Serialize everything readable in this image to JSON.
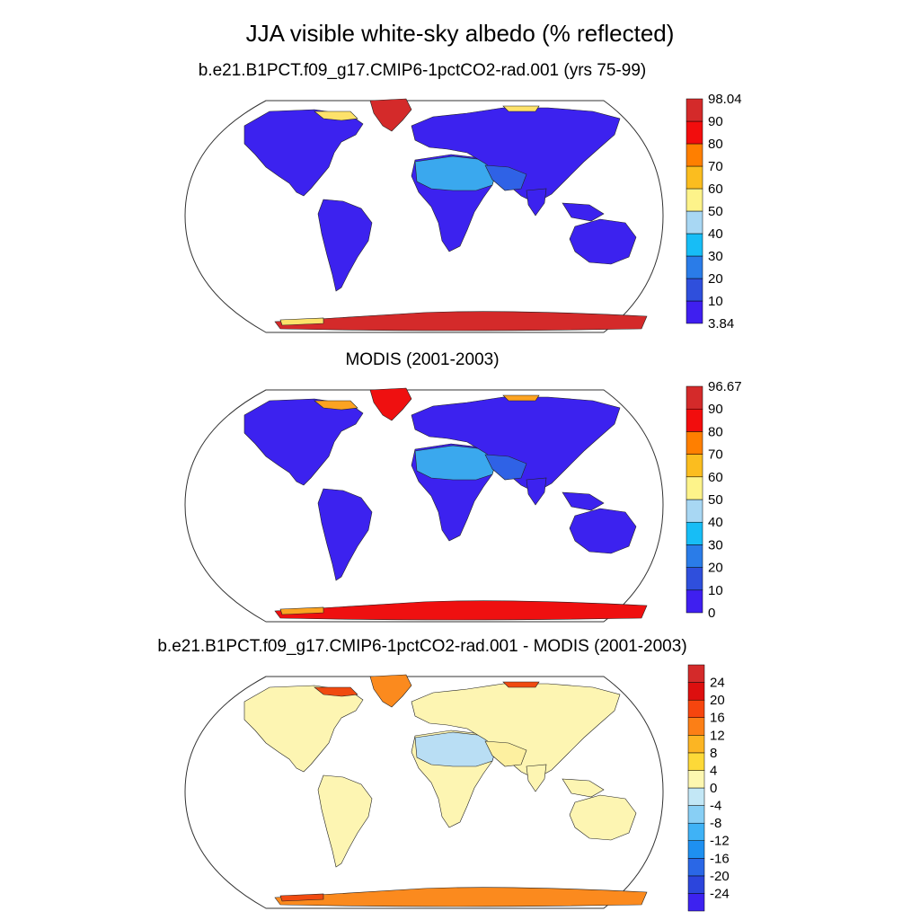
{
  "title": "JJA visible white-sky albedo (% reflected)",
  "panels": [
    {
      "subtitle": "b.e21.B1PCT.f09_g17.CMIP6-1pctCO2-rad.001 (yrs 75-99)",
      "colorbar": {
        "colors": [
          "#3f1ff0",
          "#2f4fdc",
          "#2a7ce8",
          "#17bdf6",
          "#a8d7f3",
          "#fdf38a",
          "#fbbd1f",
          "#ff7f00",
          "#f20d0d",
          "#d42a2a"
        ],
        "labels": [
          "3.84",
          "10",
          "20",
          "30",
          "40",
          "50",
          "60",
          "70",
          "80",
          "90",
          "98.04"
        ]
      },
      "colors": {
        "land": "#3c22ef",
        "desert": "#2f62e6",
        "sahara": "#3aa8ee",
        "ice": "#d42a2a",
        "edge": "#fde26a"
      }
    },
    {
      "subtitle": "MODIS (2001-2003)",
      "colorbar": {
        "colors": [
          "#3f1ff0",
          "#2f4fdc",
          "#2a7ce8",
          "#17bdf6",
          "#a8d7f3",
          "#fdf38a",
          "#fbbd1f",
          "#ff7f00",
          "#f20d0d",
          "#d42a2a"
        ],
        "labels": [
          "0",
          "10",
          "20",
          "30",
          "40",
          "50",
          "60",
          "70",
          "80",
          "90",
          "96.67"
        ]
      },
      "colors": {
        "land": "#3c22ef",
        "desert": "#2f62e6",
        "sahara": "#3aa8ee",
        "ice": "#ef1010",
        "edge": "#fca321"
      }
    },
    {
      "subtitle": "b.e21.B1PCT.f09_g17.CMIP6-1pctCO2-rad.001 - MODIS (2001-2003)",
      "colorbar": {
        "colors": [
          "#3d22f0",
          "#2c45dc",
          "#2a67e6",
          "#1e90f0",
          "#3fb2f6",
          "#88cff5",
          "#c3e7f6",
          "#fdf7b0",
          "#fdd938",
          "#fcb523",
          "#fc7f16",
          "#f6450e",
          "#dd0f0f",
          "#d42a2a"
        ],
        "labels": [
          "-24",
          "-20",
          "-16",
          "-12",
          "-8",
          "-4",
          "0",
          "4",
          "8",
          "12",
          "16",
          "20",
          "24"
        ]
      },
      "colors": {
        "land": "#fdf5b2",
        "desert": "#fdf0a0",
        "sahara": "#b9def4",
        "ice": "#fb8a1e",
        "edge": "#f04a10"
      }
    }
  ]
}
